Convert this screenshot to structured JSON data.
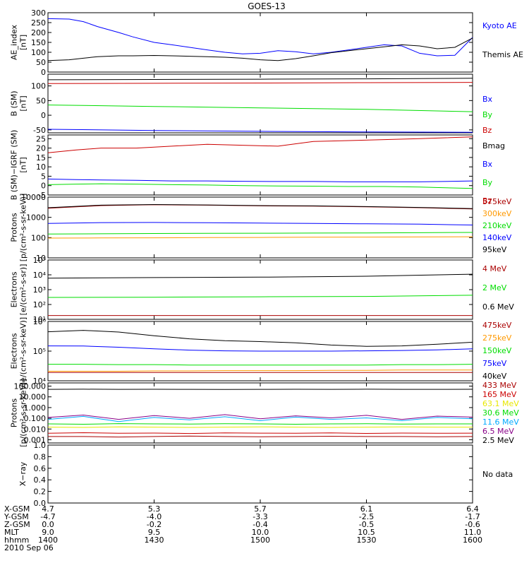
{
  "title": "GOES-13",
  "colors": {
    "black": "#000000",
    "blue": "#0000ff",
    "green": "#00dd00",
    "red": "#cc0000",
    "darkred": "#aa0000",
    "orange": "#ff9900",
    "yellow": "#e8e800",
    "cyan": "#00aaff",
    "purple": "#880088"
  },
  "chart_data": [
    {
      "type": "line",
      "id": "ae",
      "ylabel": [
        "AE_index",
        "[nT]"
      ],
      "ylim": [
        0,
        300
      ],
      "yscale": "linear",
      "ticks": [
        0,
        50,
        100,
        150,
        200,
        250,
        300
      ],
      "tick_labels": [
        "0",
        "50",
        "100",
        "150",
        "200",
        "250",
        "300"
      ],
      "x": [
        0,
        6,
        10,
        14,
        20,
        24,
        30,
        35,
        40,
        45,
        50,
        55,
        60,
        65,
        70,
        75,
        80,
        85,
        90,
        95,
        100,
        105,
        110,
        115,
        120
      ],
      "series": [
        {
          "name": "Kyoto AE",
          "color": "blue",
          "values": [
            270,
            268,
            255,
            230,
            200,
            178,
            150,
            138,
            125,
            112,
            100,
            92,
            95,
            108,
            103,
            92,
            100,
            112,
            125,
            138,
            132,
            95,
            82,
            85,
            175
          ]
        },
        {
          "name": "Themis AE",
          "color": "black",
          "values": [
            58,
            62,
            70,
            78,
            82,
            82,
            84,
            82,
            80,
            78,
            75,
            70,
            62,
            58,
            68,
            82,
            98,
            108,
            118,
            128,
            138,
            132,
            118,
            125,
            172
          ]
        }
      ]
    },
    {
      "type": "line",
      "id": "bsm",
      "ylabel": [
        "B (SM)",
        "[nT]"
      ],
      "ylim": [
        -60,
        140
      ],
      "yscale": "linear",
      "ticks": [
        -50,
        0,
        50,
        100
      ],
      "tick_labels": [
        "-50",
        "0",
        "50",
        "100"
      ],
      "x": [
        0,
        30,
        60,
        90,
        120
      ],
      "series": [
        {
          "name": "Bx",
          "color": "blue",
          "values": [
            -48,
            -52,
            -55,
            -57,
            -58
          ]
        },
        {
          "name": "By",
          "color": "green",
          "values": [
            35,
            30,
            25,
            20,
            12
          ]
        },
        {
          "name": "Bz",
          "color": "red",
          "values": [
            108,
            109,
            110,
            111,
            112
          ]
        },
        {
          "name": "Bmag",
          "color": "black",
          "values": [
            121,
            122,
            123,
            124,
            126
          ]
        }
      ]
    },
    {
      "type": "line",
      "id": "bigrf",
      "ylabel": [
        "B (SM)−IGRF (SM)",
        "[nT]"
      ],
      "ylim": [
        -5,
        27
      ],
      "yscale": "linear",
      "ticks": [
        -5,
        0,
        5,
        10,
        15,
        20,
        25
      ],
      "tick_labels": [
        "-5",
        "0",
        "5",
        "10",
        "15",
        "20",
        "25"
      ],
      "x": [
        0,
        8,
        15,
        25,
        35,
        45,
        55,
        65,
        75,
        85,
        95,
        105,
        120
      ],
      "series": [
        {
          "name": "Bx",
          "color": "blue",
          "values": [
            3.5,
            3.2,
            3.0,
            2.8,
            2.5,
            2.5,
            2.3,
            2.2,
            2.2,
            2.0,
            2.0,
            2.0,
            2.5
          ]
        },
        {
          "name": "By",
          "color": "green",
          "values": [
            0.5,
            0.8,
            1.0,
            0.8,
            0.5,
            0.3,
            0.0,
            -0.2,
            -0.3,
            -0.5,
            -0.5,
            -0.8,
            -1.5
          ]
        },
        {
          "name": "Bz",
          "color": "red",
          "values": [
            17.5,
            19,
            20,
            20,
            21,
            22,
            21.5,
            21,
            23.5,
            24,
            24.5,
            25,
            26
          ]
        }
      ]
    },
    {
      "type": "line",
      "id": "protons1",
      "ylabel": [
        "Protons",
        "[p/(cm²-s-sr-keV)]"
      ],
      "ylim": [
        10,
        10000
      ],
      "yscale": "log",
      "ticks": [
        10,
        100,
        1000,
        10000
      ],
      "tick_labels": [
        "10",
        "100",
        "1000",
        "10000"
      ],
      "x": [
        0,
        15,
        30,
        45,
        60,
        75,
        90,
        105,
        120
      ],
      "series": [
        {
          "name": "575keV",
          "color": "darkred",
          "values": [
            2800,
            3800,
            4200,
            4000,
            3700,
            3600,
            3300,
            3000,
            2600
          ]
        },
        {
          "name": "300keV",
          "color": "orange",
          "values": [
            95,
            96,
            98,
            100,
            102,
            104,
            106,
            108,
            110
          ]
        },
        {
          "name": "210keV",
          "color": "green",
          "values": [
            150,
            155,
            160,
            162,
            165,
            168,
            170,
            175,
            180
          ]
        },
        {
          "name": "140keV",
          "color": "blue",
          "values": [
            500,
            550,
            560,
            540,
            520,
            500,
            480,
            460,
            420
          ]
        },
        {
          "name": "95keV",
          "color": "black",
          "values": [
            3000,
            4000,
            4300,
            4100,
            3800,
            3700,
            3400,
            3100,
            2700
          ]
        }
      ]
    },
    {
      "type": "line",
      "id": "electrons1",
      "ylabel": [
        "Electrons",
        "[e/(cm²-s-sr)]"
      ],
      "ylim": [
        10,
        100000
      ],
      "yscale": "log",
      "ticks": [
        10,
        100,
        1000,
        10000,
        100000
      ],
      "tick_labels": [
        "10¹",
        "10²",
        "10³",
        "10⁴",
        "10⁵"
      ],
      "x": [
        0,
        30,
        60,
        90,
        120
      ],
      "series": [
        {
          "name": "4 MeV",
          "color": "darkred",
          "values": [
            18,
            18,
            18,
            18,
            18
          ]
        },
        {
          "name": "2 MeV",
          "color": "green",
          "values": [
            300,
            310,
            330,
            350,
            420
          ]
        },
        {
          "name": "0.6 MeV",
          "color": "black",
          "values": [
            6000,
            6500,
            7000,
            8000,
            11000
          ]
        }
      ]
    },
    {
      "type": "line",
      "id": "electrons2",
      "ylabel": [
        "Electrons",
        "[e/(cm²-s-sr-keV)]"
      ],
      "ylim": [
        10000,
        1000000
      ],
      "yscale": "log",
      "ticks": [
        10000,
        100000,
        1000000
      ],
      "tick_labels": [
        "10⁴",
        "10⁵",
        "10⁶"
      ],
      "x": [
        0,
        10,
        20,
        30,
        40,
        50,
        60,
        70,
        80,
        90,
        100,
        110,
        120
      ],
      "series": [
        {
          "name": "475keV",
          "color": "darkred",
          "values": [
            19000,
            19000,
            19000,
            19000,
            19000,
            19000,
            19000,
            19000,
            19000,
            19000,
            19000,
            19000,
            19000
          ]
        },
        {
          "name": "275keV",
          "color": "orange",
          "values": [
            21000,
            21000,
            21000,
            21500,
            21500,
            22000,
            22000,
            22000,
            22500,
            22500,
            23000,
            23000,
            23000
          ]
        },
        {
          "name": "150keV",
          "color": "green",
          "values": [
            36000,
            36000,
            35000,
            35000,
            34000,
            34000,
            34000,
            34000,
            34000,
            34000,
            35000,
            35000,
            36000
          ]
        },
        {
          "name": "75keV",
          "color": "blue",
          "values": [
            150000,
            148000,
            135000,
            120000,
            108000,
            102000,
            100000,
            100000,
            100000,
            102000,
            105000,
            110000,
            120000
          ]
        },
        {
          "name": "40keV",
          "color": "black",
          "values": [
            450000,
            500000,
            440000,
            330000,
            260000,
            225000,
            210000,
            190000,
            160000,
            145000,
            150000,
            170000,
            200000
          ]
        }
      ]
    },
    {
      "type": "line",
      "id": "protons2",
      "ylabel": [
        "Protons",
        "[p/(cm²-s-sr-keV)]"
      ],
      "ylim": [
        0.0005,
        200
      ],
      "yscale": "log",
      "ticks": [
        0.001,
        0.01,
        0.1,
        1,
        10,
        100
      ],
      "tick_labels": [
        "0.001",
        "0.010",
        "0.100",
        "1.000",
        "10.000",
        "100.000"
      ],
      "x": [
        0,
        10,
        20,
        30,
        40,
        50,
        60,
        70,
        80,
        90,
        100,
        110,
        120
      ],
      "series": [
        {
          "name": "433 MeV",
          "color": "darkred",
          "values": [
            0.002,
            0.002,
            0.0018,
            0.002,
            0.0022,
            0.002,
            0.0019,
            0.002,
            0.0021,
            0.002,
            0.002,
            0.0019,
            0.002
          ]
        },
        {
          "name": "165 MeV",
          "color": "red",
          "values": [
            0.004,
            0.0045,
            0.004,
            0.0042,
            0.0038,
            0.0044,
            0.0041,
            0.004,
            0.0043,
            0.0039,
            0.0042,
            0.004,
            0.0041
          ]
        },
        {
          "name": "63.1 MeV",
          "color": "yellow",
          "values": [
            0.015,
            0.014,
            0.016,
            0.015,
            0.014,
            0.015,
            0.016,
            0.015,
            0.014,
            0.015,
            0.016,
            0.015,
            0.015
          ]
        },
        {
          "name": "30.6 MeV",
          "color": "green",
          "values": [
            0.03,
            0.028,
            0.032,
            0.03,
            0.029,
            0.031,
            0.03,
            0.028,
            0.03,
            0.031,
            0.029,
            0.03,
            0.03
          ]
        },
        {
          "name": "11.6 MeV",
          "color": "cyan",
          "values": [
            0.08,
            0.15,
            0.05,
            0.12,
            0.07,
            0.14,
            0.06,
            0.13,
            0.08,
            0.11,
            0.06,
            0.12,
            0.09
          ]
        },
        {
          "name": "6.5 MeV",
          "color": "purple",
          "values": [
            0.12,
            0.2,
            0.08,
            0.18,
            0.1,
            0.22,
            0.09,
            0.17,
            0.11,
            0.19,
            0.08,
            0.16,
            0.13
          ]
        },
        {
          "name": "2.5 MeV",
          "color": "black",
          "values": [
            50,
            52,
            50,
            51,
            50,
            49,
            50,
            51,
            50,
            52,
            50,
            50,
            51
          ]
        }
      ]
    },
    {
      "type": "line",
      "id": "xray",
      "ylabel": [
        "X−ray"
      ],
      "ylim": [
        0,
        1.0
      ],
      "yscale": "linear",
      "ticks": [
        0,
        0.2,
        0.4,
        0.6,
        0.8,
        1.0
      ],
      "tick_labels": [
        "0.0",
        "0.2",
        "0.4",
        "0.6",
        "0.8",
        "1.0"
      ],
      "x": [],
      "series": [],
      "annotation": "No data"
    }
  ],
  "xaxis": {
    "range": [
      0,
      120
    ],
    "tick_positions": [
      0,
      30,
      60,
      90,
      120
    ],
    "rows": [
      {
        "label": "X-GSM",
        "values": [
          "4.7",
          "5.3",
          "5.7",
          "6.1",
          "6.4"
        ]
      },
      {
        "label": "Y-GSM",
        "values": [
          "-4.7",
          "-4.0",
          "-3.3",
          "-2.5",
          "-1.7"
        ]
      },
      {
        "label": "Z-GSM",
        "values": [
          "0.0",
          "-0.2",
          "-0.4",
          "-0.5",
          "-0.6"
        ]
      },
      {
        "label": "MLT",
        "values": [
          "9.0",
          "9.5",
          "10.0",
          "10.5",
          "11.0"
        ]
      },
      {
        "label": "hhmm",
        "values": [
          "1400",
          "1430",
          "1500",
          "1530",
          "1600"
        ]
      }
    ],
    "date": "2010 Sep 06"
  }
}
